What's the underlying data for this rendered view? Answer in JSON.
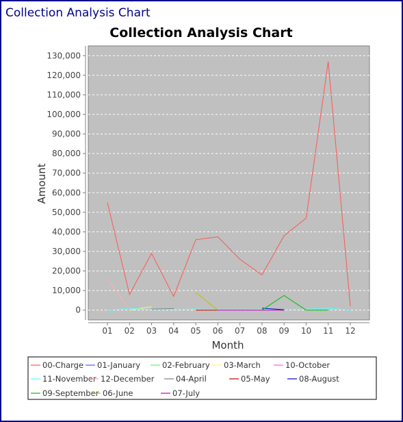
{
  "window": {
    "title": "Collection Analysis Chart"
  },
  "chart_data": {
    "type": "line",
    "title": "Collection Analysis Chart",
    "xlabel": "Month",
    "ylabel": "Amount",
    "categories": [
      "01",
      "02",
      "03",
      "04",
      "05",
      "06",
      "07",
      "08",
      "09",
      "10",
      "11",
      "12"
    ],
    "ylim": [
      -5000,
      135000
    ],
    "yticks": [
      0,
      10000,
      20000,
      30000,
      40000,
      50000,
      60000,
      70000,
      80000,
      90000,
      100000,
      110000,
      120000,
      130000
    ],
    "ytick_labels": [
      "0",
      "10,000",
      "20,000",
      "30,000",
      "40,000",
      "50,000",
      "60,000",
      "70,000",
      "80,000",
      "90,000",
      "100,000",
      "110,000",
      "120,000",
      "130,000"
    ],
    "grid": true,
    "legend_position": "bottom",
    "series": [
      {
        "name": "00-Charge",
        "color": "#ff5555",
        "values": [
          55000,
          8000,
          29000,
          7000,
          36000,
          37500,
          26000,
          18000,
          38000,
          47000,
          127000,
          2000
        ]
      },
      {
        "name": "01-January",
        "color": "#5555ff",
        "values": [
          null,
          null,
          null,
          null,
          null,
          null,
          null,
          null,
          null,
          null,
          null,
          null
        ]
      },
      {
        "name": "02-February",
        "color": "#55ff55",
        "values": [
          null,
          null,
          null,
          null,
          null,
          null,
          null,
          null,
          null,
          null,
          null,
          null
        ]
      },
      {
        "name": "03-March",
        "color": "#ffff55",
        "values": [
          null,
          0,
          1800,
          null,
          null,
          null,
          null,
          null,
          null,
          null,
          null,
          null
        ]
      },
      {
        "name": "10-October",
        "color": "#ff55ff",
        "values": [
          null,
          null,
          null,
          null,
          null,
          null,
          null,
          null,
          null,
          null,
          null,
          null
        ]
      },
      {
        "name": "11-November",
        "color": "#55ffff",
        "values": [
          0,
          800,
          300,
          300,
          500,
          300,
          300,
          400,
          300,
          500,
          1000,
          0
        ]
      },
      {
        "name": "12-December",
        "color": "#ffafaf",
        "values": [
          16000,
          0,
          null,
          null,
          null,
          null,
          null,
          null,
          null,
          null,
          null,
          null
        ]
      },
      {
        "name": "04-April",
        "color": "#808080",
        "values": [
          null,
          null,
          500,
          800,
          null,
          null,
          null,
          null,
          null,
          null,
          null,
          null
        ]
      },
      {
        "name": "05-May",
        "color": "#c00000",
        "values": [
          null,
          null,
          null,
          null,
          0,
          0,
          null,
          null,
          null,
          null,
          null,
          null
        ]
      },
      {
        "name": "08-August",
        "color": "#0000c0",
        "values": [
          null,
          null,
          null,
          null,
          null,
          null,
          null,
          1000,
          200,
          null,
          null,
          null
        ]
      },
      {
        "name": "09-September",
        "color": "#00c000",
        "values": [
          null,
          null,
          null,
          null,
          null,
          null,
          null,
          0,
          7500,
          0,
          0,
          null
        ]
      },
      {
        "name": "06-June",
        "color": "#c0c000",
        "values": [
          null,
          null,
          null,
          null,
          9000,
          0,
          null,
          null,
          null,
          null,
          null,
          null
        ]
      },
      {
        "name": "07-July",
        "color": "#c000c0",
        "values": [
          null,
          null,
          null,
          null,
          null,
          0,
          0,
          0,
          0,
          null,
          null,
          null
        ]
      }
    ]
  }
}
